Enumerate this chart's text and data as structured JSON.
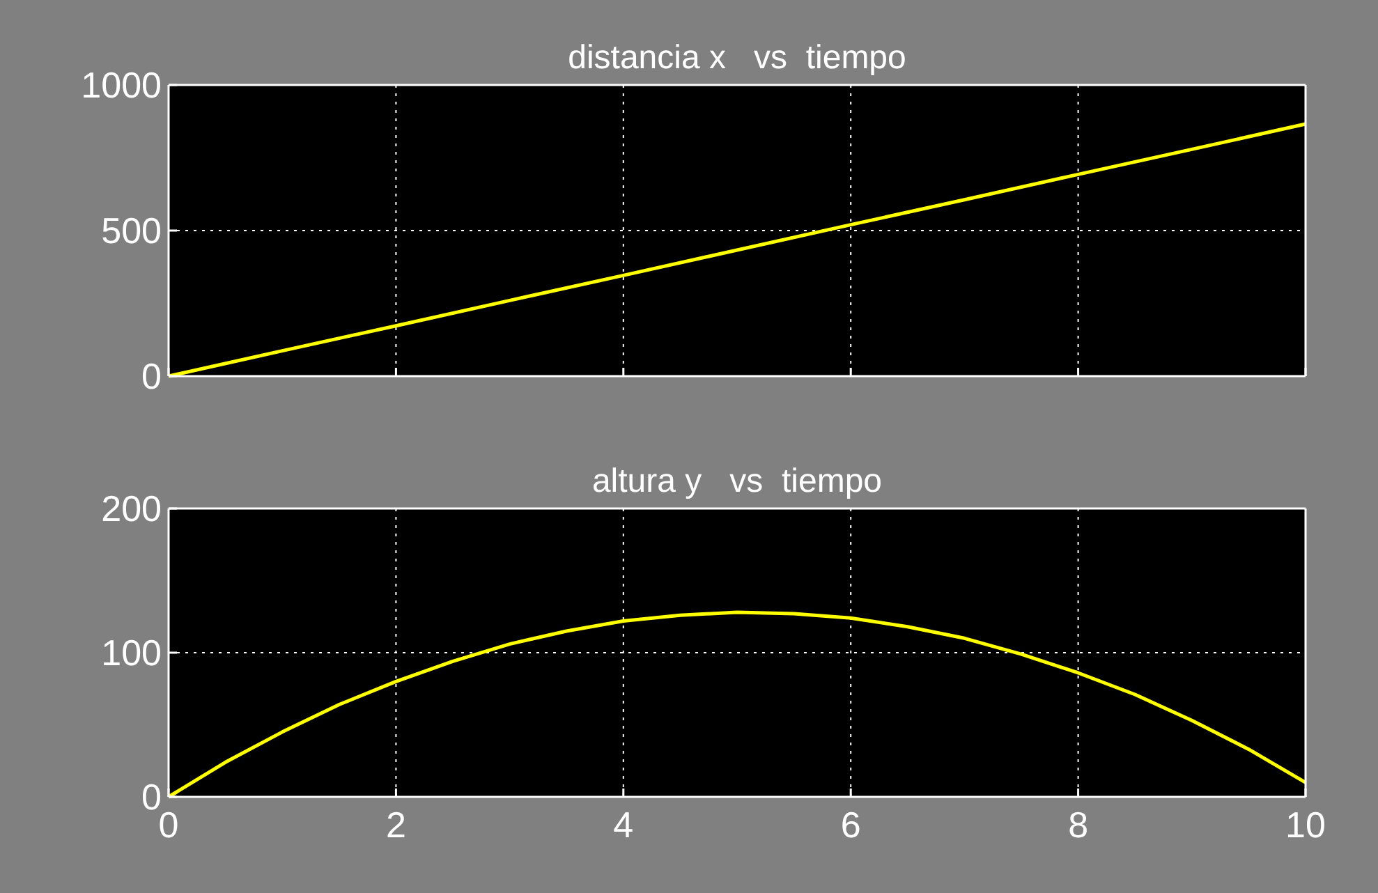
{
  "chart_data": [
    {
      "type": "line",
      "title": "distancia x   vs  tiempo",
      "x": [
        0,
        1,
        2,
        3,
        4,
        5,
        6,
        7,
        8,
        9,
        10
      ],
      "series": [
        {
          "color": "#ffff00",
          "values": [
            0,
            87,
            173,
            260,
            346,
            433,
            520,
            606,
            693,
            779,
            866
          ]
        }
      ],
      "xlim": [
        0,
        10
      ],
      "xticks": [
        0,
        2,
        4,
        6,
        8,
        10
      ],
      "ylim": [
        0,
        1000
      ],
      "yticks": [
        0,
        500,
        1000
      ],
      "grid": true,
      "tick_labels": "y"
    },
    {
      "type": "line",
      "title": "altura y   vs  tiempo",
      "x": [
        0,
        0.5,
        1,
        1.5,
        2,
        2.5,
        3,
        3.5,
        4,
        4.5,
        5,
        5.5,
        6,
        6.5,
        7,
        7.5,
        8,
        8.5,
        9,
        9.5,
        10
      ],
      "series": [
        {
          "color": "#ffff00",
          "values": [
            0,
            24,
            45,
            64,
            80,
            94,
            106,
            115,
            122,
            126,
            128,
            127,
            124,
            118,
            110,
            99,
            86,
            71,
            53,
            33,
            10
          ]
        }
      ],
      "xlim": [
        0,
        10
      ],
      "xticks": [
        0,
        2,
        4,
        6,
        8,
        10
      ],
      "ylim": [
        0,
        200
      ],
      "yticks": [
        0,
        100,
        200
      ],
      "grid": true
    }
  ]
}
